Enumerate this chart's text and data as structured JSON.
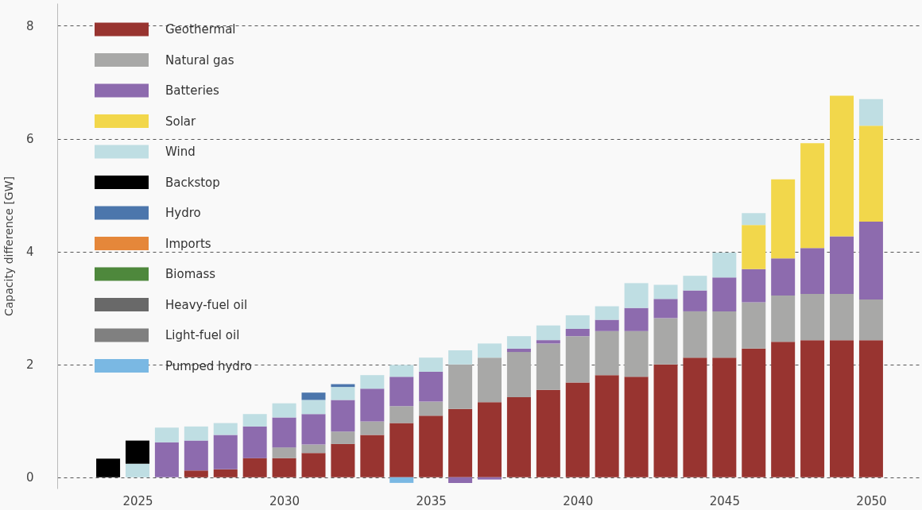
{
  "chart_data": {
    "type": "bar",
    "stacked": true,
    "ylabel": "Capacity difference [GW]",
    "x": [
      2024,
      2025,
      2026,
      2027,
      2028,
      2029,
      2030,
      2031,
      2032,
      2033,
      2034,
      2035,
      2036,
      2037,
      2038,
      2039,
      2040,
      2041,
      2042,
      2043,
      2044,
      2045,
      2046,
      2047,
      2048,
      2049,
      2050
    ],
    "xlim": [
      2022.4,
      2051.6
    ],
    "xticks": [
      2025,
      2030,
      2035,
      2040,
      2045,
      2050
    ],
    "ylim": [
      -0.2,
      8.4
    ],
    "yticks": [
      0,
      2,
      4,
      6,
      8
    ],
    "grid": "y",
    "legend": "top left",
    "series": [
      {
        "name": "Geothermal",
        "color": "#983430",
        "values": [
          null,
          null,
          null,
          0.12,
          0.14,
          0.34,
          0.34,
          0.43,
          0.59,
          0.75,
          0.96,
          1.09,
          1.21,
          1.33,
          1.42,
          1.55,
          1.68,
          1.81,
          1.78,
          2.0,
          2.12,
          2.12,
          2.28,
          2.4,
          2.43,
          2.43,
          2.43
        ]
      },
      {
        "name": "Natural gas",
        "color": "#a8a8a7",
        "values": [
          null,
          null,
          null,
          null,
          null,
          null,
          0.19,
          0.15,
          0.22,
          0.24,
          0.3,
          0.25,
          0.79,
          0.79,
          0.8,
          0.82,
          0.82,
          0.78,
          0.81,
          0.82,
          0.82,
          0.82,
          0.82,
          0.82,
          0.82,
          0.82,
          0.72
        ]
      },
      {
        "name": "Batteries",
        "color": "#8d6bae",
        "values": [
          null,
          null,
          0.62,
          0.53,
          0.61,
          0.56,
          0.53,
          0.54,
          0.56,
          0.58,
          0.52,
          0.53,
          -0.1,
          -0.04,
          0.06,
          0.06,
          0.13,
          0.2,
          0.41,
          0.34,
          0.37,
          0.6,
          0.59,
          0.66,
          0.81,
          1.02,
          1.38
        ]
      },
      {
        "name": "Solar",
        "color": "#f2d74b",
        "values": [
          null,
          null,
          null,
          null,
          null,
          null,
          null,
          null,
          null,
          null,
          null,
          null,
          null,
          null,
          null,
          null,
          null,
          null,
          null,
          null,
          null,
          null,
          0.78,
          1.4,
          1.86,
          2.49,
          1.7
        ]
      },
      {
        "name": "Wind",
        "color": "#bfdee3",
        "values": [
          null,
          0.24,
          0.26,
          0.25,
          0.21,
          0.22,
          0.25,
          0.25,
          0.23,
          0.24,
          0.21,
          0.25,
          0.25,
          0.25,
          0.22,
          0.26,
          0.24,
          0.24,
          0.44,
          0.25,
          0.26,
          0.44,
          0.21,
          null,
          null,
          null,
          0.47
        ]
      },
      {
        "name": "Backstop",
        "color": "#000000",
        "values": [
          0.33,
          0.41,
          null,
          null,
          null,
          null,
          null,
          null,
          null,
          null,
          null,
          null,
          null,
          null,
          null,
          null,
          null,
          null,
          null,
          null,
          null,
          null,
          null,
          null,
          null,
          null,
          null
        ]
      },
      {
        "name": "Hydro",
        "color": "#4c76ac",
        "values": [
          null,
          null,
          null,
          null,
          null,
          null,
          null,
          0.13,
          0.05,
          null,
          null,
          null,
          null,
          null,
          null,
          null,
          null,
          null,
          null,
          null,
          null,
          null,
          null,
          null,
          null,
          null,
          null
        ]
      },
      {
        "name": "Imports",
        "color": "#e5873a",
        "values": [
          null,
          null,
          null,
          null,
          null,
          null,
          null,
          null,
          null,
          null,
          null,
          null,
          null,
          null,
          null,
          null,
          null,
          null,
          null,
          null,
          null,
          null,
          null,
          null,
          null,
          null,
          null
        ]
      },
      {
        "name": "Biomass",
        "color": "#4e883c",
        "values": [
          null,
          null,
          null,
          null,
          null,
          null,
          null,
          null,
          null,
          null,
          null,
          null,
          null,
          null,
          null,
          null,
          null,
          null,
          null,
          null,
          null,
          null,
          null,
          null,
          null,
          null,
          null
        ]
      },
      {
        "name": "Heavy-fuel oil",
        "color": "#696969",
        "values": [
          null,
          null,
          null,
          null,
          null,
          null,
          null,
          null,
          null,
          null,
          null,
          null,
          null,
          null,
          null,
          null,
          null,
          null,
          null,
          null,
          null,
          null,
          null,
          null,
          null,
          null,
          null
        ]
      },
      {
        "name": "Light-fuel oil",
        "color": "#808080",
        "values": [
          null,
          null,
          null,
          null,
          null,
          null,
          null,
          null,
          null,
          null,
          null,
          null,
          null,
          null,
          null,
          null,
          null,
          null,
          null,
          null,
          null,
          null,
          null,
          null,
          null,
          null,
          null
        ]
      },
      {
        "name": "Pumped hydro",
        "color": "#7ab8e3",
        "values": [
          null,
          null,
          null,
          null,
          null,
          null,
          null,
          null,
          null,
          null,
          -0.1,
          null,
          null,
          null,
          null,
          null,
          null,
          null,
          null,
          null,
          null,
          null,
          null,
          null,
          null,
          null,
          null
        ]
      }
    ]
  }
}
